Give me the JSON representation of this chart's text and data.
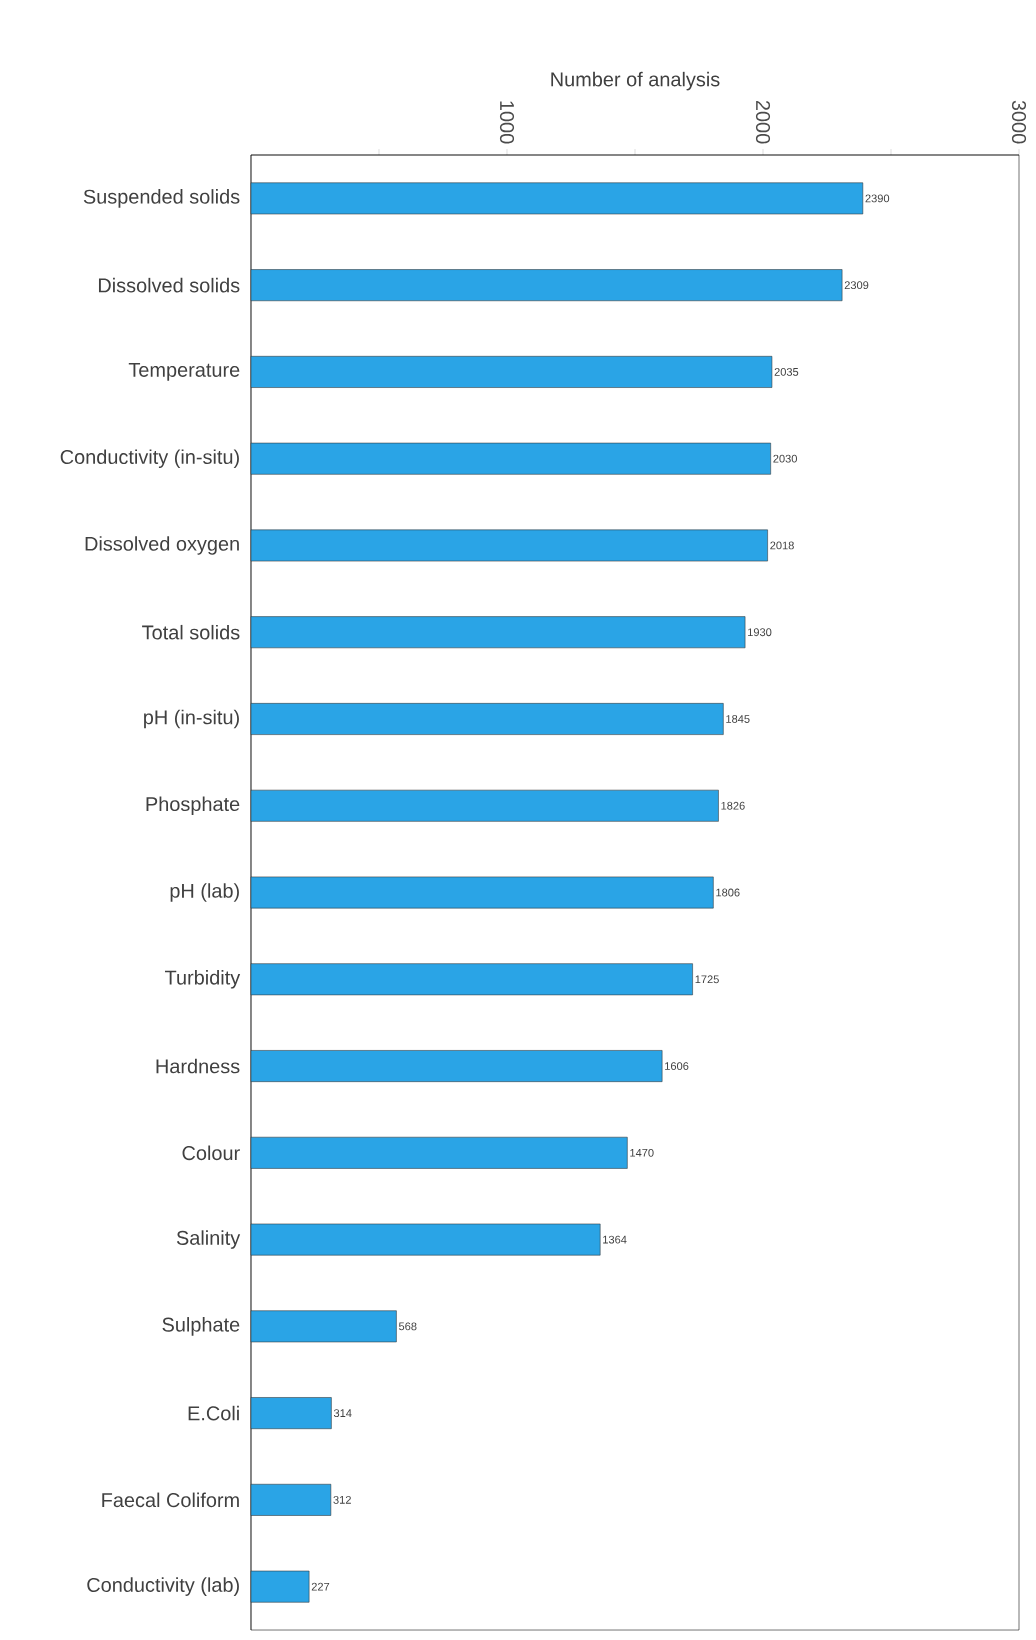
{
  "chart_data": {
    "type": "bar",
    "orientation": "horizontal",
    "xlabel": "Number of analysis",
    "categories": [
      "Suspended solids",
      "Dissolved solids",
      "Temperature",
      "Conductivity (in-situ)",
      "Dissolved oxygen",
      "Total solids",
      "pH (in-situ)",
      "Phosphate",
      "pH (lab)",
      "Turbidity",
      "Hardness",
      "Colour",
      "Salinity",
      "Sulphate",
      "E.Coli",
      "Faecal Coliform",
      "Conductivity (lab)"
    ],
    "values": [
      2390,
      2309,
      2035,
      2030,
      2018,
      1930,
      1845,
      1826,
      1806,
      1725,
      1606,
      1470,
      1364,
      568,
      314,
      312,
      227
    ],
    "color": "#2aa4e6",
    "data_labels": true,
    "xlim": [
      0,
      3000
    ],
    "xticks": [
      {
        "value": 500,
        "label": null
      },
      1000,
      {
        "value": 1500,
        "label": null
      },
      2000,
      {
        "value": 2500,
        "label": null
      },
      3000
    ]
  }
}
